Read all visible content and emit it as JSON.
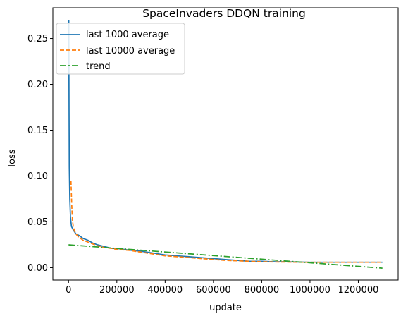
{
  "chart_data": {
    "type": "line",
    "title": "SpaceInvaders DDQN training",
    "xlabel": "update",
    "ylabel": "loss",
    "xlim": [
      -65000,
      1365000
    ],
    "ylim": [
      -0.0135,
      0.2835
    ],
    "x_ticks": [
      0,
      200000,
      400000,
      600000,
      800000,
      1000000,
      1200000
    ],
    "x_tick_labels": [
      "0",
      "200000",
      "400000",
      "600000",
      "800000",
      "1000000",
      "1200000"
    ],
    "y_ticks": [
      0.0,
      0.05,
      0.1,
      0.15,
      0.2,
      0.25
    ],
    "y_tick_labels": [
      "0.00",
      "0.05",
      "0.10",
      "0.15",
      "0.20",
      "0.25"
    ],
    "grid": false,
    "legend_position": "top-left",
    "series": [
      {
        "name": "last 1000 average",
        "color": "#1f77b4",
        "style": "solid",
        "x": [
          1000,
          2000,
          3000,
          5000,
          8000,
          12000,
          20000,
          30000,
          45000,
          60000,
          80000,
          100000,
          120000,
          150000,
          180000,
          200000,
          230000,
          260000,
          300000,
          350000,
          400000,
          450000,
          500000,
          550000,
          600000,
          650000,
          700000,
          750000,
          800000,
          850000,
          900000,
          950000,
          1000000,
          1050000,
          1100000,
          1150000,
          1200000,
          1250000,
          1300000
        ],
        "y": [
          0.27,
          0.17,
          0.11,
          0.075,
          0.055,
          0.045,
          0.041,
          0.037,
          0.035,
          0.032,
          0.03,
          0.027,
          0.025,
          0.023,
          0.021,
          0.021,
          0.02,
          0.019,
          0.018,
          0.016,
          0.014,
          0.013,
          0.012,
          0.011,
          0.01,
          0.009,
          0.008,
          0.007,
          0.007,
          0.0065,
          0.0065,
          0.0062,
          0.006,
          0.006,
          0.006,
          0.006,
          0.006,
          0.006,
          0.006
        ]
      },
      {
        "name": "last 10000 average",
        "color": "#ff7f0e",
        "style": "dashed",
        "x": [
          10000,
          13000,
          16000,
          20000,
          25000,
          30000,
          40000,
          50000,
          60000,
          80000,
          100000,
          120000,
          150000,
          180000,
          200000,
          250000,
          300000,
          350000,
          400000,
          450000,
          500000,
          550000,
          600000,
          650000,
          700000,
          750000,
          800000,
          850000,
          900000,
          950000,
          1000000,
          1100000,
          1200000,
          1300000
        ],
        "y": [
          0.095,
          0.07,
          0.052,
          0.044,
          0.04,
          0.037,
          0.034,
          0.032,
          0.03,
          0.028,
          0.026,
          0.024,
          0.022,
          0.021,
          0.02,
          0.019,
          0.017,
          0.015,
          0.013,
          0.012,
          0.011,
          0.01,
          0.009,
          0.008,
          0.0075,
          0.007,
          0.0065,
          0.0063,
          0.0062,
          0.006,
          0.006,
          0.006,
          0.006,
          0.006
        ]
      },
      {
        "name": "trend",
        "color": "#2ca02c",
        "style": "dashdot",
        "x": [
          0,
          1300000
        ],
        "y": [
          0.025,
          -0.0005
        ]
      }
    ]
  }
}
